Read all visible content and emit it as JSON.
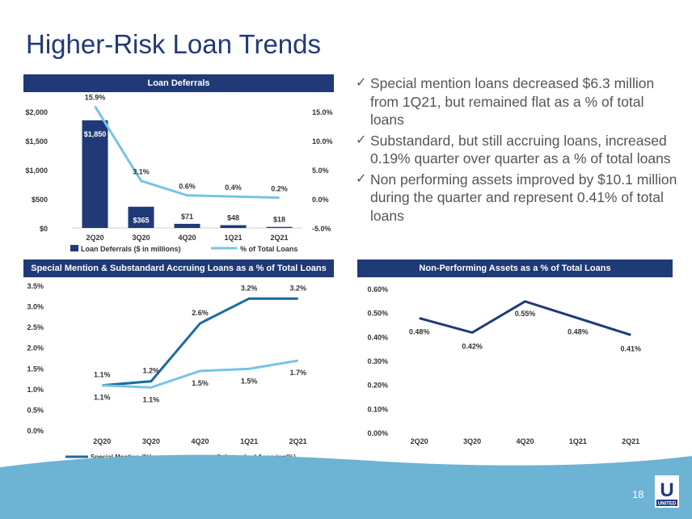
{
  "title": "Higher-Risk Loan Trends",
  "bullets": [
    "Special mention loans decreased $6.3 million from 1Q21, but remained flat as a % of total loans",
    "Substandard, but still accruing loans, increased 0.19% quarter over quarter as a % of total loans",
    "Non performing assets improved by $10.1 million during the quarter and represent 0.41% of total loans"
  ],
  "page_number": "18",
  "logo": {
    "letter": "U",
    "word": "UNITED"
  },
  "colors": {
    "navy": "#1f3a77",
    "light_blue": "#75c4e6",
    "mid_blue": "#1a6c9e",
    "footer": "#6db3d3"
  },
  "chart_data": [
    {
      "type": "bar",
      "title": "Loan Deferrals",
      "categories": [
        "2Q20",
        "3Q20",
        "4Q20",
        "1Q21",
        "2Q21"
      ],
      "series": [
        {
          "name": "Loan Deferrals ($ in millions)",
          "values": [
            1850,
            365,
            71,
            48,
            18
          ],
          "labels": [
            "$1,850",
            "$365",
            "$71",
            "$48",
            "$18"
          ],
          "axis": "left"
        },
        {
          "name": "% of Total Loans",
          "type": "line",
          "values": [
            15.9,
            3.1,
            0.6,
            0.4,
            0.2
          ],
          "labels": [
            "15.9%",
            "3.1%",
            "0.6%",
            "0.4%",
            "0.2%"
          ],
          "axis": "right"
        }
      ],
      "ylim": [
        0,
        2000
      ],
      "yticks": [
        "$0",
        "$500",
        "$1,000",
        "$1,500",
        "$2,000"
      ],
      "y2lim": [
        -5,
        15
      ],
      "y2ticks": [
        "-5.0%",
        "0.0%",
        "5.0%",
        "10.0%",
        "15.0%"
      ],
      "legend": "bottom"
    },
    {
      "type": "line",
      "title": "Special Mention & Substandard Accruing Loans as a % of Total Loans",
      "categories": [
        "2Q20",
        "3Q20",
        "4Q20",
        "1Q21",
        "2Q21"
      ],
      "series": [
        {
          "name": "Special Mention (%)",
          "values": [
            1.1,
            1.2,
            2.6,
            3.2,
            3.2
          ],
          "labels": [
            "1.1%",
            "1.2%",
            "2.6%",
            "3.2%",
            "3.2%"
          ]
        },
        {
          "name": "Substandard Accruing(%)",
          "values": [
            1.1,
            1.05,
            1.45,
            1.5,
            1.7
          ],
          "labels": [
            "1.1%",
            "1.1%",
            "1.5%",
            "1.5%",
            "1.7%"
          ]
        }
      ],
      "ylim": [
        0,
        3.5
      ],
      "yticks": [
        "0.0%",
        "0.5%",
        "1.0%",
        "1.5%",
        "2.0%",
        "2.5%",
        "3.0%",
        "3.5%"
      ],
      "legend": "bottom"
    },
    {
      "type": "line",
      "title": "Non-Performing Assets as a % of Total Loans",
      "categories": [
        "2Q20",
        "3Q20",
        "4Q20",
        "1Q21",
        "2Q21"
      ],
      "series": [
        {
          "values": [
            0.48,
            0.42,
            0.55,
            0.48,
            0.41
          ],
          "labels": [
            "0.48%",
            "0.42%",
            "0.55%",
            "0.48%",
            "0.41%"
          ]
        }
      ],
      "ylim": [
        0,
        0.6
      ],
      "yticks": [
        "0.00%",
        "0.10%",
        "0.20%",
        "0.30%",
        "0.40%",
        "0.50%",
        "0.60%"
      ]
    }
  ]
}
